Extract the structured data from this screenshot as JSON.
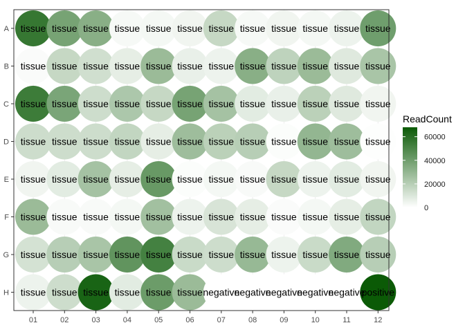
{
  "chart_data": {
    "type": "scatter",
    "subtype": "plate-map",
    "title": "",
    "xlabel": "",
    "ylabel": "",
    "x_categories": [
      "01",
      "02",
      "03",
      "04",
      "05",
      "06",
      "07",
      "08",
      "09",
      "10",
      "11",
      "12"
    ],
    "y_categories": [
      "A",
      "B",
      "C",
      "D",
      "E",
      "F",
      "G",
      "H"
    ],
    "grid": true,
    "legend": {
      "title": "ReadCount",
      "placement": "right",
      "ticks": [
        0,
        20000,
        40000,
        60000
      ],
      "tick_labels": [
        "0",
        "20000",
        "40000",
        "60000"
      ],
      "range": [
        0,
        68000
      ],
      "colors": {
        "low": "#ffffff",
        "high": "#0b5a06"
      }
    },
    "wells": [
      {
        "row": "A",
        "col": "01",
        "label": "tissue",
        "value": 56000
      },
      {
        "row": "A",
        "col": "02",
        "label": "tissue",
        "value": 38000
      },
      {
        "row": "A",
        "col": "03",
        "label": "tissue",
        "value": 33000
      },
      {
        "row": "A",
        "col": "04",
        "label": "tissue",
        "value": 2500
      },
      {
        "row": "A",
        "col": "05",
        "label": "tissue",
        "value": 3000
      },
      {
        "row": "A",
        "col": "06",
        "label": "tissue",
        "value": 4000
      },
      {
        "row": "A",
        "col": "07",
        "label": "tissue",
        "value": 16000
      },
      {
        "row": "A",
        "col": "08",
        "label": "tissue",
        "value": 2500
      },
      {
        "row": "A",
        "col": "09",
        "label": "tissue",
        "value": 4000
      },
      {
        "row": "A",
        "col": "10",
        "label": "tissue",
        "value": 3000
      },
      {
        "row": "A",
        "col": "11",
        "label": "tissue",
        "value": 5000
      },
      {
        "row": "A",
        "col": "12",
        "label": "tissue",
        "value": 40000
      },
      {
        "row": "B",
        "col": "01",
        "label": "tissue",
        "value": 1500
      },
      {
        "row": "B",
        "col": "02",
        "label": "tissue",
        "value": 16000
      },
      {
        "row": "B",
        "col": "03",
        "label": "tissue",
        "value": 13000
      },
      {
        "row": "B",
        "col": "04",
        "label": "tissue",
        "value": 7000
      },
      {
        "row": "B",
        "col": "05",
        "label": "tissue",
        "value": 28000
      },
      {
        "row": "B",
        "col": "06",
        "label": "tissue",
        "value": 6000
      },
      {
        "row": "B",
        "col": "07",
        "label": "tissue",
        "value": 5000
      },
      {
        "row": "B",
        "col": "08",
        "label": "tissue",
        "value": 33000
      },
      {
        "row": "B",
        "col": "09",
        "label": "tissue",
        "value": 18000
      },
      {
        "row": "B",
        "col": "10",
        "label": "tissue",
        "value": 28000
      },
      {
        "row": "B",
        "col": "11",
        "label": "tissue",
        "value": 9000
      },
      {
        "row": "B",
        "col": "12",
        "label": "tissue",
        "value": 24000
      },
      {
        "row": "C",
        "col": "01",
        "label": "tissue",
        "value": 54000
      },
      {
        "row": "C",
        "col": "02",
        "label": "tissue",
        "value": 37000
      },
      {
        "row": "C",
        "col": "03",
        "label": "tissue",
        "value": 14000
      },
      {
        "row": "C",
        "col": "04",
        "label": "tissue",
        "value": 23000
      },
      {
        "row": "C",
        "col": "05",
        "label": "tissue",
        "value": 16000
      },
      {
        "row": "C",
        "col": "06",
        "label": "tissue",
        "value": 38000
      },
      {
        "row": "C",
        "col": "07",
        "label": "tissue",
        "value": 25000
      },
      {
        "row": "C",
        "col": "08",
        "label": "tissue",
        "value": 8000
      },
      {
        "row": "C",
        "col": "09",
        "label": "tissue",
        "value": 6000
      },
      {
        "row": "C",
        "col": "10",
        "label": "tissue",
        "value": 19000
      },
      {
        "row": "C",
        "col": "11",
        "label": "tissue",
        "value": 9000
      },
      {
        "row": "C",
        "col": "12",
        "label": "tissue",
        "value": 4000
      },
      {
        "row": "D",
        "col": "01",
        "label": "tissue",
        "value": 14000
      },
      {
        "row": "D",
        "col": "02",
        "label": "tissue",
        "value": 14000
      },
      {
        "row": "D",
        "col": "03",
        "label": "tissue",
        "value": 14000
      },
      {
        "row": "D",
        "col": "04",
        "label": "tissue",
        "value": 17000
      },
      {
        "row": "D",
        "col": "05",
        "label": "tissue",
        "value": 7000
      },
      {
        "row": "D",
        "col": "06",
        "label": "tissue",
        "value": 27000
      },
      {
        "row": "D",
        "col": "07",
        "label": "tissue",
        "value": 19000
      },
      {
        "row": "D",
        "col": "08",
        "label": "tissue",
        "value": 20000
      },
      {
        "row": "D",
        "col": "09",
        "label": "tissue",
        "value": 1000
      },
      {
        "row": "D",
        "col": "10",
        "label": "tissue",
        "value": 30000
      },
      {
        "row": "D",
        "col": "11",
        "label": "tissue",
        "value": 27000
      },
      {
        "row": "D",
        "col": "12",
        "label": "tissue",
        "value": 500
      },
      {
        "row": "E",
        "col": "01",
        "label": "tissue",
        "value": 4000
      },
      {
        "row": "E",
        "col": "02",
        "label": "tissue",
        "value": 8000
      },
      {
        "row": "E",
        "col": "03",
        "label": "tissue",
        "value": 25000
      },
      {
        "row": "E",
        "col": "04",
        "label": "tissue",
        "value": 7000
      },
      {
        "row": "E",
        "col": "05",
        "label": "tissue",
        "value": 42000
      },
      {
        "row": "E",
        "col": "06",
        "label": "tissue",
        "value": 1000
      },
      {
        "row": "E",
        "col": "07",
        "label": "tissue",
        "value": 3000
      },
      {
        "row": "E",
        "col": "08",
        "label": "tissue",
        "value": 2000
      },
      {
        "row": "E",
        "col": "09",
        "label": "tissue",
        "value": 16000
      },
      {
        "row": "E",
        "col": "10",
        "label": "tissue",
        "value": 5000
      },
      {
        "row": "E",
        "col": "11",
        "label": "tissue",
        "value": 8000
      },
      {
        "row": "E",
        "col": "12",
        "label": "tissue",
        "value": 4000
      },
      {
        "row": "F",
        "col": "01",
        "label": "tissue",
        "value": 28000
      },
      {
        "row": "F",
        "col": "02",
        "label": "tissue",
        "value": 2000
      },
      {
        "row": "F",
        "col": "03",
        "label": "tissue",
        "value": 2000
      },
      {
        "row": "F",
        "col": "04",
        "label": "tissue",
        "value": 3000
      },
      {
        "row": "F",
        "col": "05",
        "label": "tissue",
        "value": 26000
      },
      {
        "row": "F",
        "col": "06",
        "label": "tissue",
        "value": 5000
      },
      {
        "row": "F",
        "col": "07",
        "label": "tissue",
        "value": 11000
      },
      {
        "row": "F",
        "col": "08",
        "label": "tissue",
        "value": 7000
      },
      {
        "row": "F",
        "col": "09",
        "label": "tissue",
        "value": 1500
      },
      {
        "row": "F",
        "col": "10",
        "label": "tissue",
        "value": 3000
      },
      {
        "row": "F",
        "col": "11",
        "label": "tissue",
        "value": 7000
      },
      {
        "row": "F",
        "col": "12",
        "label": "tissue",
        "value": 17000
      },
      {
        "row": "G",
        "col": "01",
        "label": "tissue",
        "value": 12000
      },
      {
        "row": "G",
        "col": "02",
        "label": "tissue",
        "value": 20000
      },
      {
        "row": "G",
        "col": "03",
        "label": "tissue",
        "value": 24000
      },
      {
        "row": "G",
        "col": "04",
        "label": "tissue",
        "value": 44000
      },
      {
        "row": "G",
        "col": "05",
        "label": "tissue",
        "value": 52000
      },
      {
        "row": "G",
        "col": "06",
        "label": "tissue",
        "value": 15000
      },
      {
        "row": "G",
        "col": "07",
        "label": "tissue",
        "value": 14000
      },
      {
        "row": "G",
        "col": "08",
        "label": "tissue",
        "value": 29000
      },
      {
        "row": "G",
        "col": "09",
        "label": "tissue",
        "value": 5000
      },
      {
        "row": "G",
        "col": "10",
        "label": "tissue",
        "value": 15000
      },
      {
        "row": "G",
        "col": "11",
        "label": "tissue",
        "value": 35000
      },
      {
        "row": "G",
        "col": "12",
        "label": "tissue",
        "value": 20000
      },
      {
        "row": "H",
        "col": "01",
        "label": "tissue",
        "value": 5000
      },
      {
        "row": "H",
        "col": "02",
        "label": "tissue",
        "value": 14000
      },
      {
        "row": "H",
        "col": "03",
        "label": "tissue",
        "value": 64000
      },
      {
        "row": "H",
        "col": "04",
        "label": "tissue",
        "value": 8000
      },
      {
        "row": "H",
        "col": "05",
        "label": "tissue",
        "value": 41000
      },
      {
        "row": "H",
        "col": "06",
        "label": "tissue",
        "value": 28000
      },
      {
        "row": "H",
        "col": "07",
        "label": "negative",
        "value": 0
      },
      {
        "row": "H",
        "col": "08",
        "label": "negative",
        "value": 0
      },
      {
        "row": "H",
        "col": "09",
        "label": "negative",
        "value": 0
      },
      {
        "row": "H",
        "col": "10",
        "label": "negative",
        "value": 0
      },
      {
        "row": "H",
        "col": "11",
        "label": "negative",
        "value": 0
      },
      {
        "row": "H",
        "col": "12",
        "label": "positive",
        "value": 68000
      }
    ]
  }
}
